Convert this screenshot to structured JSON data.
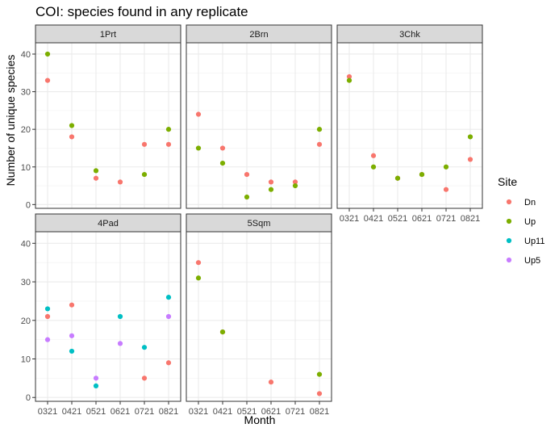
{
  "chart_data": {
    "type": "scatter",
    "title": "COI: species found in any replicate",
    "xlabel": "Month",
    "ylabel": "Number of unique species",
    "categories": [
      "0321",
      "0421",
      "0521",
      "0621",
      "0721",
      "0821"
    ],
    "ylim": [
      -1,
      43
    ],
    "yticks": [
      0,
      10,
      20,
      30,
      40
    ],
    "grid": true,
    "legend": {
      "title": "Site",
      "position": "right",
      "entries": [
        "Dn",
        "Up",
        "Up11",
        "Up5"
      ]
    },
    "colors": {
      "Dn": "#F8766D",
      "Up": "#7CAE00",
      "Up11": "#00BFC4",
      "Up5": "#C77CFF"
    },
    "panels": [
      {
        "label": "1Prt",
        "series": [
          {
            "name": "Dn",
            "values": [
              33,
              18,
              7,
              6,
              16,
              16
            ]
          },
          {
            "name": "Up",
            "values": [
              40,
              21,
              9,
              null,
              8,
              20
            ]
          }
        ]
      },
      {
        "label": "2Brn",
        "series": [
          {
            "name": "Dn",
            "values": [
              24,
              15,
              8,
              6,
              6,
              16
            ]
          },
          {
            "name": "Up",
            "values": [
              15,
              11,
              2,
              4,
              5,
              20
            ]
          }
        ]
      },
      {
        "label": "3Chk",
        "series": [
          {
            "name": "Dn",
            "values": [
              34,
              13,
              7,
              8,
              4,
              12
            ]
          },
          {
            "name": "Up",
            "values": [
              33,
              10,
              7,
              8,
              10,
              18
            ]
          }
        ]
      },
      {
        "label": "4Pad",
        "series": [
          {
            "name": "Dn",
            "values": [
              21,
              24,
              null,
              null,
              5,
              9
            ]
          },
          {
            "name": "Up11",
            "values": [
              23,
              12,
              3,
              21,
              13,
              26
            ]
          },
          {
            "name": "Up5",
            "values": [
              15,
              16,
              5,
              14,
              null,
              21
            ]
          }
        ]
      },
      {
        "label": "5Sqm",
        "series": [
          {
            "name": "Dn",
            "values": [
              35,
              17,
              null,
              4,
              null,
              1
            ]
          },
          {
            "name": "Up",
            "values": [
              31,
              17,
              null,
              null,
              null,
              6
            ]
          }
        ]
      }
    ]
  }
}
